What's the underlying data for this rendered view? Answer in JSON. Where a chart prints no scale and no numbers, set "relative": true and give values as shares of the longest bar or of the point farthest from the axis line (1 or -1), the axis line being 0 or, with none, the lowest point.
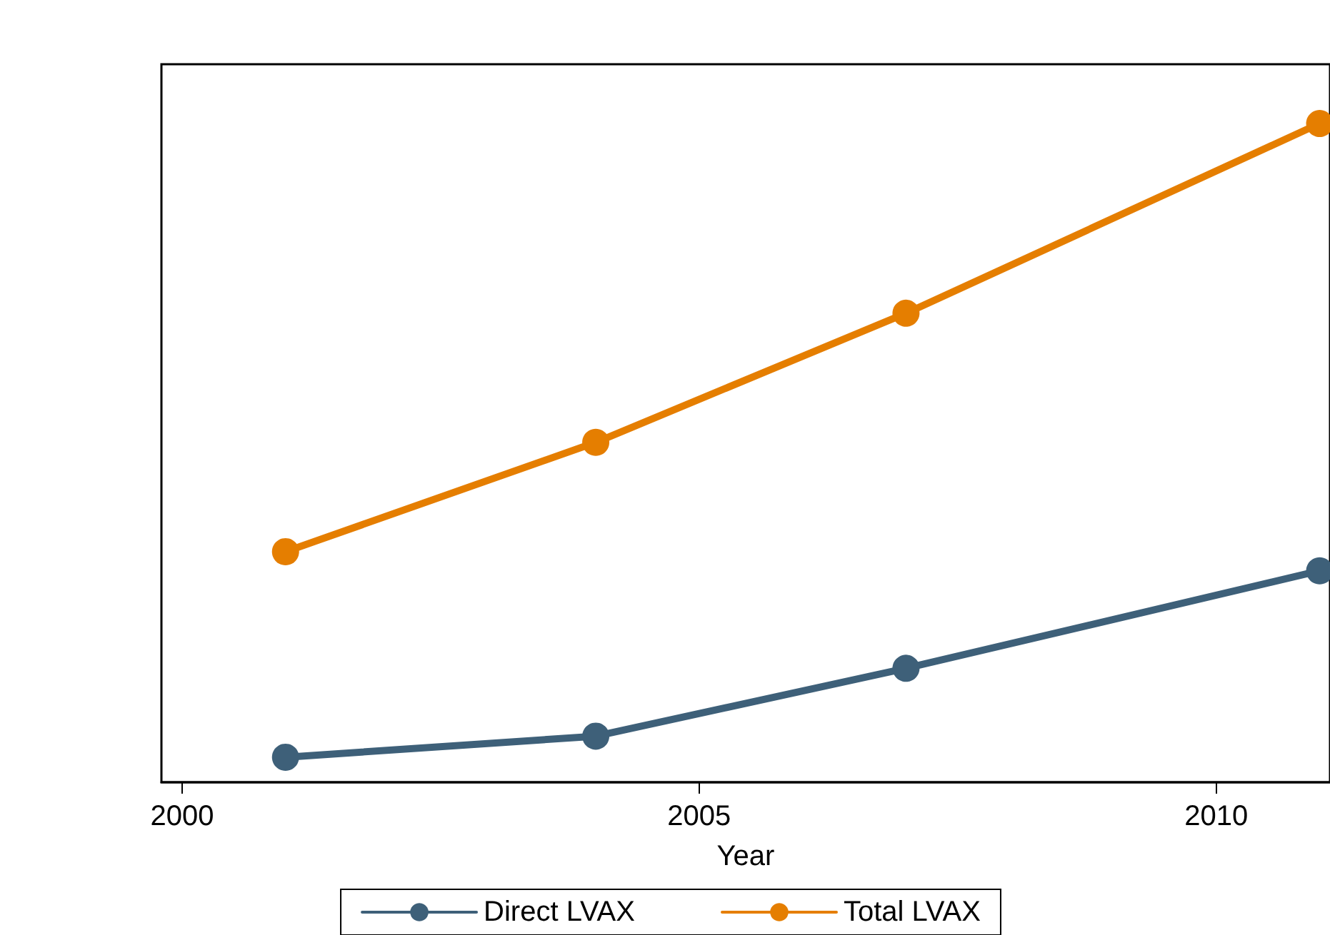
{
  "chart_data": {
    "type": "line",
    "xlabel": "Year",
    "x": [
      2001,
      2004,
      2007,
      2011
    ],
    "xlim": [
      1999.8,
      2011.1
    ],
    "xticks": [
      2000,
      2005,
      2010
    ],
    "relative": true,
    "grid": false,
    "legend": "bottom",
    "marker": "circle",
    "line_style": "solid",
    "series": [
      {
        "name": "Direct LVAX",
        "color": "#3e6079",
        "values": [
          0.038,
          0.07,
          0.173,
          0.321
        ]
      },
      {
        "name": "Total LVAX",
        "color": "#e57e00",
        "values": [
          0.35,
          0.516,
          0.712,
          1
        ]
      }
    ]
  }
}
